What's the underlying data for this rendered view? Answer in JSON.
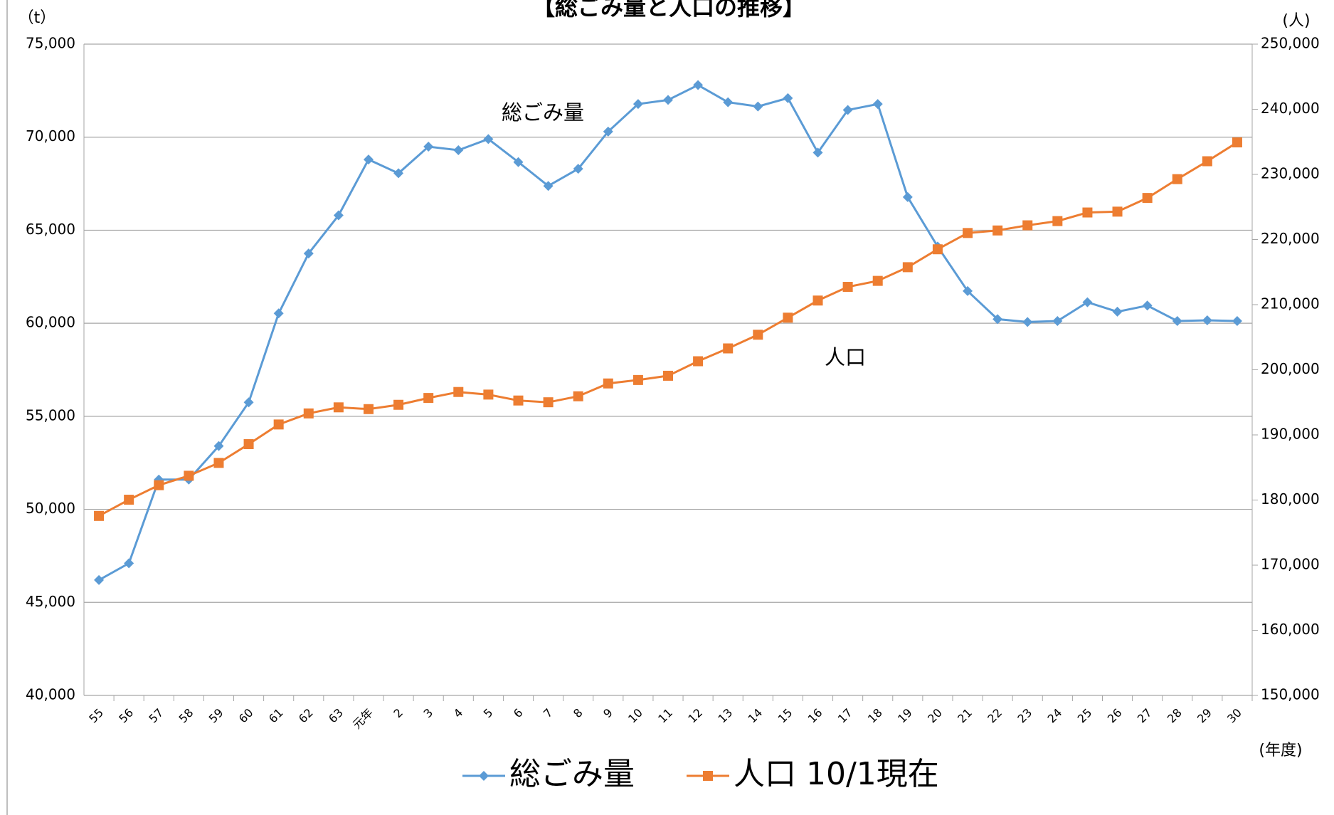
{
  "chart_data": {
    "type": "line",
    "title": "【総ごみ量と人口の推移】",
    "y_label": "（t）",
    "y2_label": "(人)",
    "x_label": "(年度)",
    "annotations": [
      "総ごみ量",
      "人口"
    ],
    "categories": [
      "55",
      "56",
      "57",
      "58",
      "59",
      "60",
      "61",
      "62",
      "63",
      "元年",
      "2",
      "3",
      "4",
      "5",
      "6",
      "7",
      "8",
      "9",
      "10",
      "11",
      "12",
      "13",
      "14",
      "15",
      "16",
      "17",
      "18",
      "19",
      "20",
      "21",
      "22",
      "23",
      "24",
      "25",
      "26",
      "27",
      "28",
      "29",
      "30"
    ],
    "series": [
      {
        "name": "総ごみ量",
        "color": "#5b9bd5",
        "marker": "diamond",
        "values": [
          46200,
          47100,
          51600,
          51600,
          53400,
          55750,
          60530,
          63750,
          65800,
          68800,
          68060,
          69490,
          69300,
          69900,
          68660,
          67380,
          68300,
          70300,
          71780,
          72000,
          72800,
          71880,
          71650,
          72100,
          69170,
          71460,
          71780,
          66780,
          64120,
          61730,
          60220,
          60070,
          60120,
          61130,
          60620,
          60950,
          60120,
          60160,
          60120
        ]
      },
      {
        "name": "人口 10/1現在",
        "color": "#ed7d31",
        "marker": "square",
        "axis": "y2",
        "values": [
          177560,
          180050,
          182280,
          183730,
          185700,
          188580,
          191600,
          193300,
          194230,
          193960,
          194620,
          195670,
          196590,
          196190,
          195280,
          195010,
          195930,
          197900,
          198430,
          199080,
          201310,
          203280,
          205380,
          208000,
          210630,
          212730,
          213650,
          215750,
          218500,
          221000,
          221390,
          222180,
          222830,
          224150,
          224280,
          226380,
          229270,
          232020,
          234910
        ]
      }
    ],
    "ylim": [
      40000,
      75000
    ],
    "yticks": [
      {
        "value": 40000,
        "label": "40,000"
      },
      {
        "value": 45000,
        "label": "45,000"
      },
      {
        "value": 50000,
        "label": "50,000"
      },
      {
        "value": 55000,
        "label": "55,000"
      },
      {
        "value": 60000,
        "label": "60,000"
      },
      {
        "value": 65000,
        "label": "65,000"
      },
      {
        "value": 70000,
        "label": "70,000"
      },
      {
        "value": 75000,
        "label": "75,000"
      }
    ],
    "y2lim": [
      150000,
      250000
    ],
    "y2ticks": [
      {
        "value": 150000,
        "label": "150,000"
      },
      {
        "value": 160000,
        "label": "160,000"
      },
      {
        "value": 170000,
        "label": "170,000"
      },
      {
        "value": 180000,
        "label": "180,000"
      },
      {
        "value": 190000,
        "label": "190,000"
      },
      {
        "value": 200000,
        "label": "200,000"
      },
      {
        "value": 210000,
        "label": "210,000"
      },
      {
        "value": 220000,
        "label": "220,000"
      },
      {
        "value": 230000,
        "label": "230,000"
      },
      {
        "value": 240000,
        "label": "240,000"
      },
      {
        "value": 250000,
        "label": "250,000"
      }
    ],
    "grid": true,
    "legend": "bottom"
  }
}
